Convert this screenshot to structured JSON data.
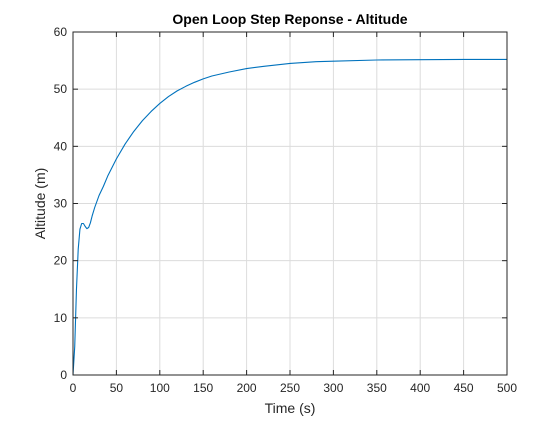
{
  "chart_data": {
    "type": "line",
    "title": "Open Loop Step Reponse - Altitude",
    "xlabel": "Time (s)",
    "ylabel": "Altitude (m)",
    "xlim": [
      0,
      500
    ],
    "ylim": [
      0,
      60
    ],
    "xticks": [
      0,
      50,
      100,
      150,
      200,
      250,
      300,
      350,
      400,
      450,
      500
    ],
    "yticks": [
      0,
      10,
      20,
      30,
      40,
      50,
      60
    ],
    "grid": true,
    "legend": "none",
    "series": [
      {
        "color": "#0072bd",
        "x": [
          0,
          2,
          4,
          6,
          8,
          10,
          12,
          14,
          16,
          18,
          20,
          22,
          25,
          30,
          35,
          40,
          50,
          60,
          70,
          80,
          90,
          100,
          110,
          120,
          130,
          140,
          150,
          160,
          180,
          200,
          220,
          250,
          280,
          300,
          350,
          400,
          450,
          500
        ],
        "y": [
          0,
          5,
          15,
          22,
          25.5,
          26.5,
          26.5,
          26.0,
          25.6,
          25.8,
          26.6,
          27.8,
          29.3,
          31.4,
          33.0,
          34.8,
          37.8,
          40.4,
          42.6,
          44.5,
          46.1,
          47.5,
          48.7,
          49.7,
          50.5,
          51.2,
          51.8,
          52.3,
          53.0,
          53.6,
          54.0,
          54.5,
          54.8,
          54.9,
          55.1,
          55.15,
          55.2,
          55.2
        ]
      }
    ]
  }
}
